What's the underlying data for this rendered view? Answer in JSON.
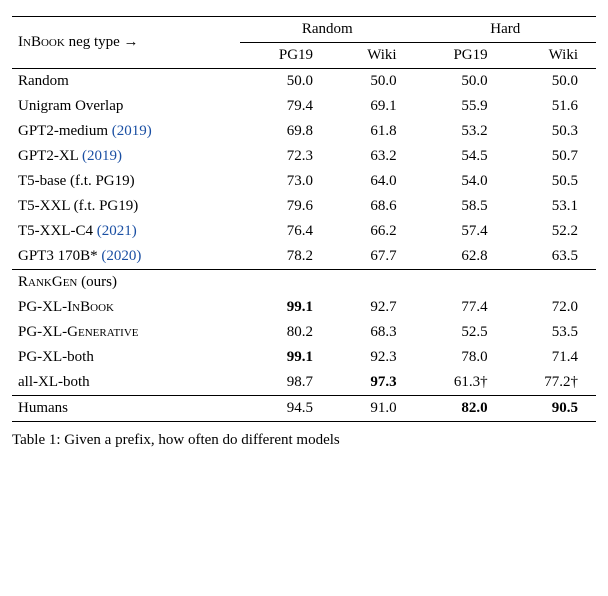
{
  "header": {
    "neg_type_label_html": "I<span style='font-variant:small-caps'>n</span>B<span style='font-variant:small-caps'>ook</span> neg type →",
    "random": "Random",
    "hard": "Hard",
    "pg19": "PG19",
    "wiki": "Wiki"
  },
  "rows": [
    {
      "label": "Random",
      "r_pg19": "50.0",
      "r_wiki": "50.0",
      "h_pg19": "50.0",
      "h_wiki": "50.0"
    },
    {
      "label": "Unigram Overlap",
      "r_pg19": "79.4",
      "r_wiki": "69.1",
      "h_pg19": "55.9",
      "h_wiki": "51.6"
    },
    {
      "label": "GPT2-medium ",
      "cite": "(2019)",
      "r_pg19": "69.8",
      "r_wiki": "61.8",
      "h_pg19": "53.2",
      "h_wiki": "50.3"
    },
    {
      "label": "GPT2-XL ",
      "cite": "(2019)",
      "r_pg19": "72.3",
      "r_wiki": "63.2",
      "h_pg19": "54.5",
      "h_wiki": "50.7"
    },
    {
      "label": "T5-base (f.t. PG19)",
      "r_pg19": "73.0",
      "r_wiki": "64.0",
      "h_pg19": "54.0",
      "h_wiki": "50.5"
    },
    {
      "label": "T5-XXL (f.t. PG19)",
      "r_pg19": "79.6",
      "r_wiki": "68.6",
      "h_pg19": "58.5",
      "h_wiki": "53.1"
    },
    {
      "label": "T5-XXL-C4 ",
      "cite": "(2021)",
      "r_pg19": "76.4",
      "r_wiki": "66.2",
      "h_pg19": "57.4",
      "h_wiki": "52.2"
    },
    {
      "label": "GPT3 170B* ",
      "cite": "(2020)",
      "r_pg19": "78.2",
      "r_wiki": "67.7",
      "h_pg19": "62.8",
      "h_wiki": "63.5"
    }
  ],
  "ours_header_html": "R<span style='font-variant:small-caps'>ank</span>G<span style='font-variant:small-caps'>en</span> (ours)",
  "ours_rows": [
    {
      "label_html": "PG-XL-I<span style='font-variant:small-caps'>n</span>B<span style='font-variant:small-caps'>ook</span>",
      "r_pg19": "99.1",
      "r_pg19_bold": true,
      "r_wiki": "92.7",
      "h_pg19": "77.4",
      "h_wiki": "72.0"
    },
    {
      "label_html": "PG-XL-G<span style='font-variant:small-caps'>enerative</span>",
      "r_pg19": "80.2",
      "r_wiki": "68.3",
      "h_pg19": "52.5",
      "h_wiki": "53.5"
    },
    {
      "label_html": "PG-XL-both",
      "r_pg19": "99.1",
      "r_pg19_bold": true,
      "r_wiki": "92.3",
      "h_pg19": "78.0",
      "h_wiki": "71.4"
    },
    {
      "label_html": "all-XL-both",
      "r_pg19": "98.7",
      "r_wiki": "97.3",
      "r_wiki_bold": true,
      "h_pg19": "61.3†",
      "h_wiki": "77.2†"
    }
  ],
  "humans": {
    "label": "Humans",
    "r_pg19": "94.5",
    "r_wiki": "91.0",
    "h_pg19": "82.0",
    "h_pg19_bold": true,
    "h_wiki": "90.5",
    "h_wiki_bold": true
  },
  "caption": "Table 1: Given a prefix, how often do different models"
}
